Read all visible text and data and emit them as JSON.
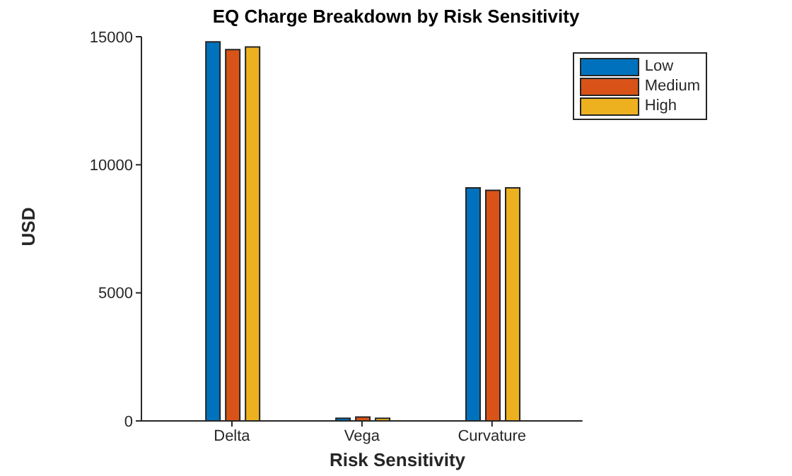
{
  "chart_data": {
    "type": "bar",
    "title": "EQ Charge Breakdown by Risk Sensitivity",
    "xlabel": "Risk Sensitivity",
    "ylabel": "USD",
    "categories": [
      "Delta",
      "Vega",
      "Curvature"
    ],
    "series": [
      {
        "name": "Low",
        "color": "#0072bd",
        "values": [
          14800,
          100,
          9100
        ]
      },
      {
        "name": "Medium",
        "color": "#d95319",
        "values": [
          14500,
          150,
          9000
        ]
      },
      {
        "name": "High",
        "color": "#edb120",
        "values": [
          14600,
          100,
          9100
        ]
      }
    ],
    "ylim": [
      0,
      15000
    ],
    "yticks": [
      0,
      5000,
      10000,
      15000
    ],
    "grid": false,
    "legend": "top right"
  }
}
